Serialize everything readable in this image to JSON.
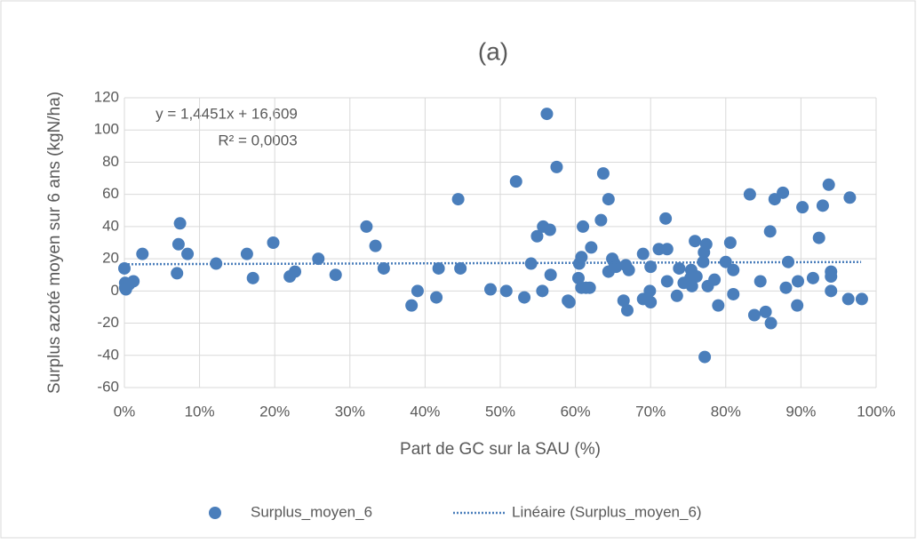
{
  "chart_data": {
    "type": "scatter",
    "title": "(a)",
    "x_label": "Part de GC sur la SAU (%)",
    "y_label": "Surplus azoté moyen sur 6 ans (kgN/ha)",
    "xlim": [
      0,
      100
    ],
    "xticks": [
      {
        "value": 0,
        "label": "0%"
      },
      {
        "value": 10,
        "label": "10%"
      },
      {
        "value": 20,
        "label": "20%"
      },
      {
        "value": 30,
        "label": "30%"
      },
      {
        "value": 40,
        "label": "40%"
      },
      {
        "value": 50,
        "label": "50%"
      },
      {
        "value": 60,
        "label": "60%"
      },
      {
        "value": 70,
        "label": "70%"
      },
      {
        "value": 80,
        "label": "80%"
      },
      {
        "value": 90,
        "label": "90%"
      },
      {
        "value": 100,
        "label": "100%"
      }
    ],
    "ylim": [
      -60,
      120
    ],
    "yticks": [
      -60,
      -40,
      -20,
      0,
      20,
      40,
      60,
      80,
      100,
      120
    ],
    "grid": true,
    "legend": "bottom",
    "series": [
      {
        "name": "Surplus_moyen_6",
        "color": "#4a7ebb",
        "x": [
          0,
          0.1,
          0.1,
          0.2,
          0.6,
          1.2,
          2.4,
          7,
          7.2,
          7.4,
          8.4,
          12.2,
          16.3,
          17.1,
          19.8,
          22,
          22.7,
          25.8,
          28.1,
          32.2,
          33.4,
          34.5,
          38.2,
          39,
          41.5,
          41.8,
          44.4,
          44.7,
          48.7,
          50.8,
          52.1,
          53.2,
          54.1,
          54.9,
          55.7,
          55.6,
          56.2,
          56.6,
          56.7,
          57.5,
          59,
          59.2,
          60.4,
          60.5,
          60.8,
          60.8,
          61,
          61.4,
          61.9,
          62.1,
          63.4,
          63.7,
          64.4,
          64.4,
          64.9,
          65.2,
          65.4,
          66.4,
          66.7,
          66.9,
          67.1,
          69,
          69,
          69.9,
          70,
          70,
          71.1,
          72,
          72.2,
          72.2,
          73.5,
          73.8,
          74.4,
          75.3,
          75.4,
          75.5,
          75.9,
          76.1,
          77,
          77.1,
          77.2,
          77.4,
          77.6,
          78.5,
          79,
          80,
          80.6,
          81,
          81,
          83.2,
          83.8,
          84.6,
          85.3,
          85.9,
          86,
          86.5,
          87.6,
          88,
          88.3,
          89.5,
          89.6,
          90.2,
          91.6,
          92.4,
          92.9,
          93.7,
          94,
          94,
          94,
          96.3,
          96.5,
          98.1
        ],
        "values": [
          14,
          5,
          2,
          1,
          4,
          6,
          23,
          11,
          29,
          42,
          23,
          17,
          23,
          8,
          30,
          9,
          12,
          20,
          10,
          40,
          28,
          14,
          -9,
          0,
          -4,
          14,
          57,
          14,
          1,
          0,
          68,
          -4,
          17,
          34,
          40,
          0,
          110,
          38,
          10,
          77,
          -6,
          -7,
          8,
          17,
          21,
          2,
          40,
          2,
          2,
          27,
          44,
          73,
          57,
          12,
          20,
          17,
          15,
          -6,
          16,
          -12,
          13,
          23,
          -5,
          0,
          -7,
          15,
          26,
          45,
          26,
          6,
          -3,
          14,
          5,
          8,
          13,
          3,
          31,
          9,
          18,
          24,
          -41,
          29,
          3,
          7,
          -9,
          18,
          30,
          -2,
          13,
          60,
          -15,
          6,
          -13,
          37,
          -20,
          57,
          61,
          2,
          18,
          -9,
          6,
          52,
          8,
          33,
          53,
          66,
          12,
          9,
          0,
          -5,
          58,
          -5
        ]
      }
    ],
    "trendline": {
      "name": "Linéaire (Surplus_moyen_6)",
      "color": "#4a7ebb",
      "x": [
        0,
        98
      ],
      "values": [
        16.6,
        18.0
      ],
      "equation": "y = 1,4451x + 16,609",
      "r_squared": "R² = 0,0003"
    }
  }
}
